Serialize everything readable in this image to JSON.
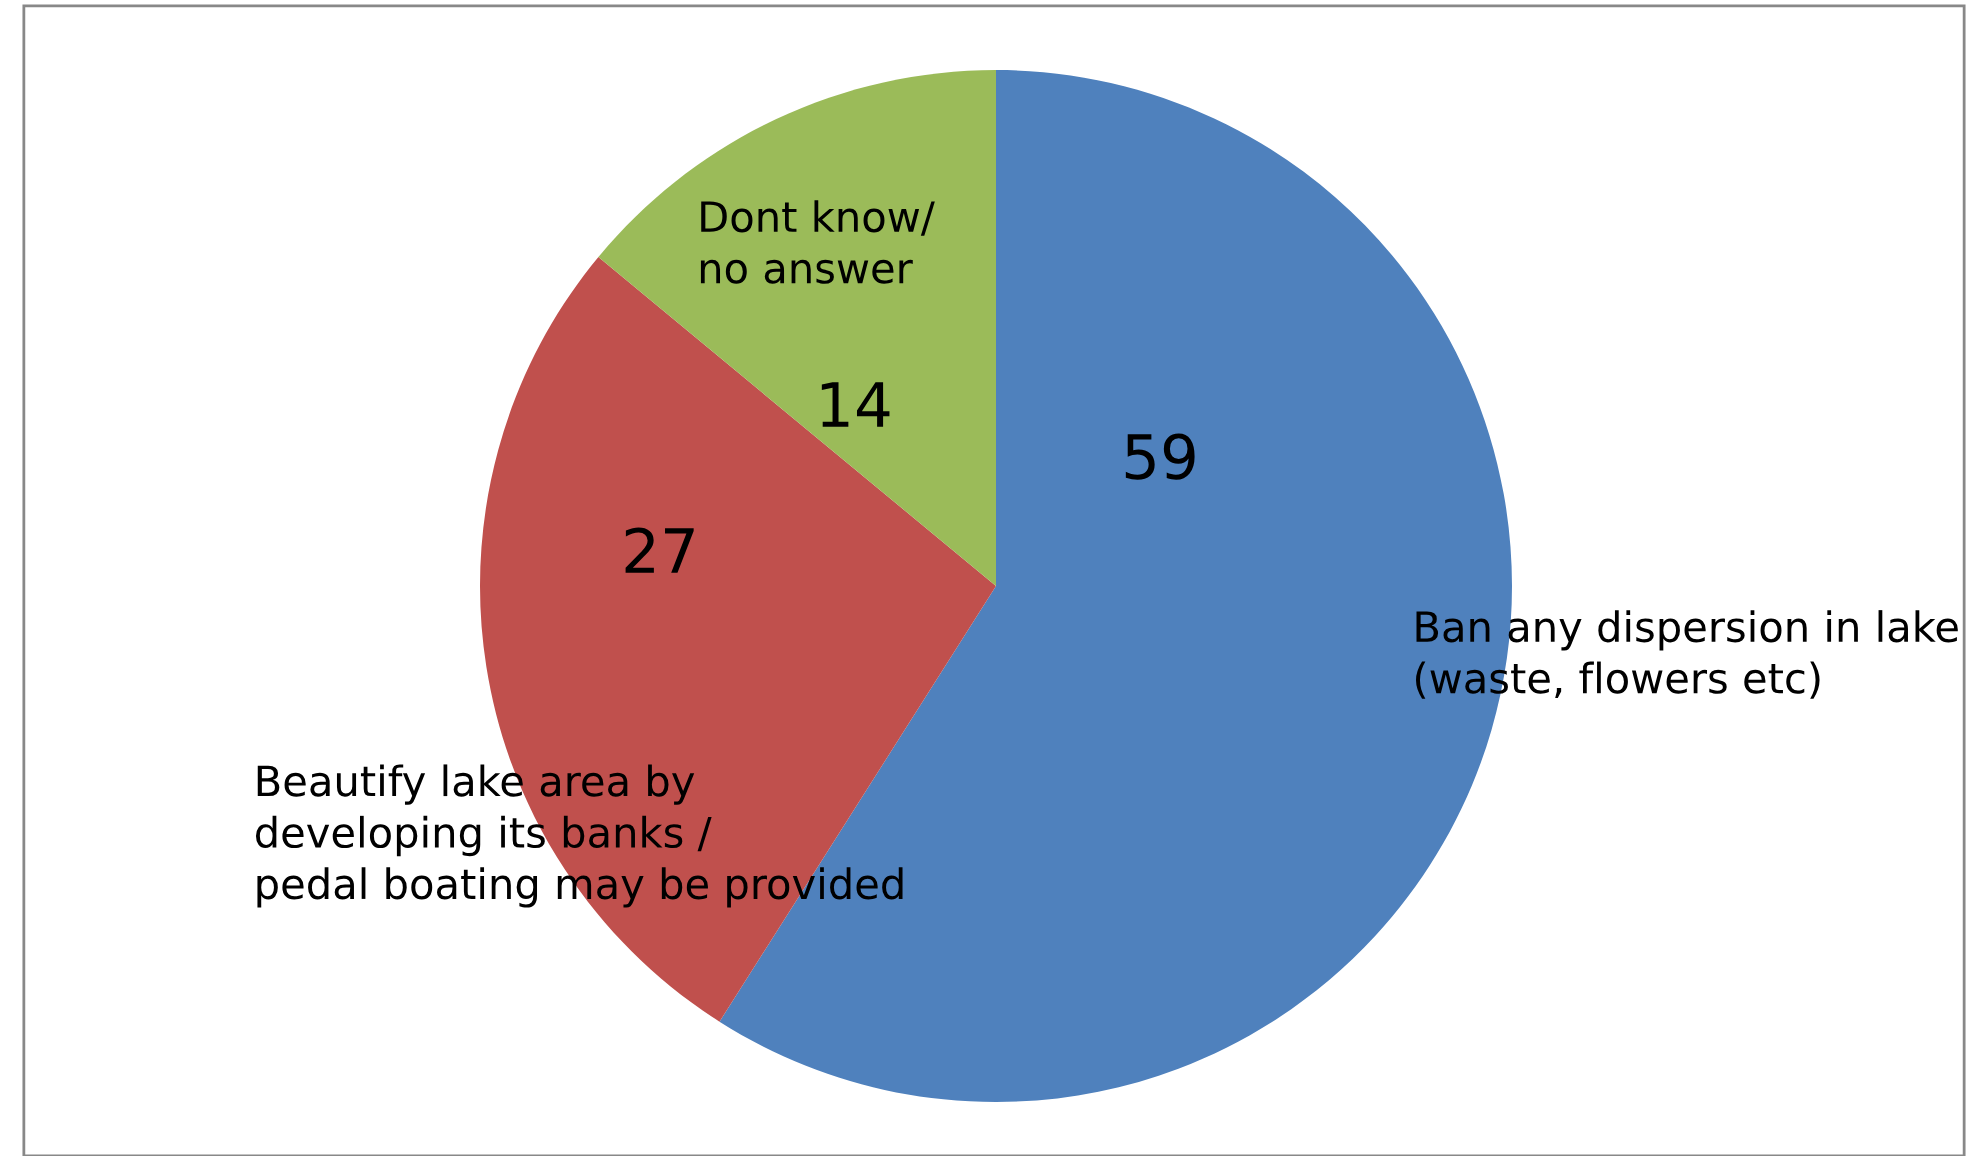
{
  "chart_data": {
    "type": "pie",
    "categories": [
      "Ban any dispersion in lake\n(waste, flowers etc)",
      "Beautify lake area by\ndeveloping its banks /\npedal boating may be provided",
      "Dont know/\nno answer"
    ],
    "values": [
      59,
      27,
      14
    ],
    "colors": [
      "#4f81bd",
      "#c0504d",
      "#9bbb59"
    ],
    "data_labels": true,
    "legend": false
  }
}
